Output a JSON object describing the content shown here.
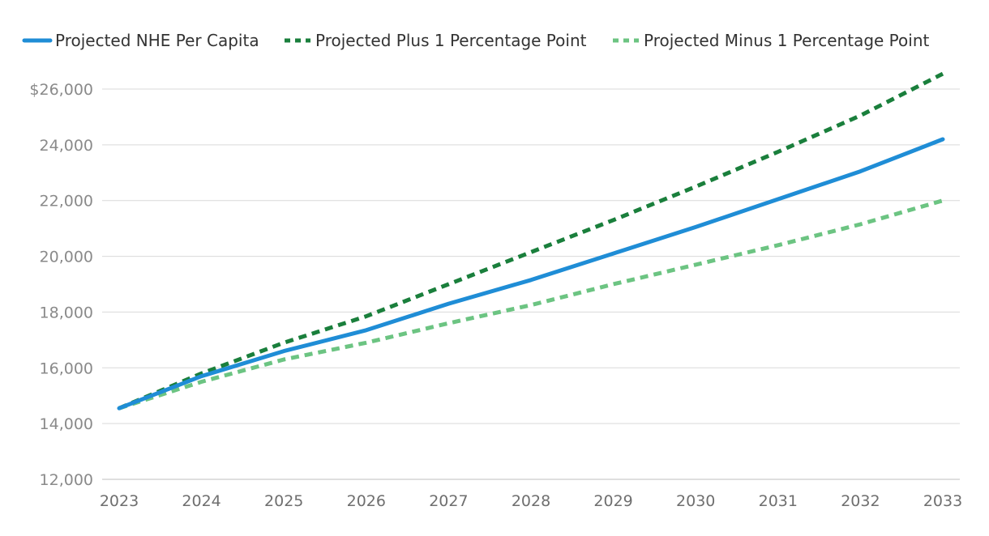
{
  "chart_data": {
    "type": "line",
    "title": "",
    "xlabel": "",
    "ylabel": "",
    "x": [
      "2023",
      "2024",
      "2025",
      "2026",
      "2027",
      "2028",
      "2029",
      "2030",
      "2031",
      "2032",
      "2033"
    ],
    "ylim": [
      12000,
      26000
    ],
    "yticks": [
      12000,
      14000,
      16000,
      18000,
      20000,
      22000,
      24000,
      26000
    ],
    "ytick_labels": [
      "12,000",
      "14,000",
      "16,000",
      "18,000",
      "20,000",
      "22,000",
      "24,000",
      "$26,000"
    ],
    "grid": true,
    "legend_position": "top",
    "series": [
      {
        "name": "Projected NHE Per Capita",
        "color": "#1f8dd6",
        "style": "solid",
        "values": [
          14550,
          15700,
          16600,
          17350,
          18300,
          19150,
          20100,
          21050,
          22050,
          23050,
          24200
        ]
      },
      {
        "name": "Projected Plus 1 Percentage Point",
        "color": "#1a7f3c",
        "style": "dashed",
        "values": [
          14550,
          15800,
          16900,
          17850,
          19000,
          20150,
          21300,
          22500,
          23750,
          25050,
          26550
        ]
      },
      {
        "name": "Projected Minus 1 Percentage Point",
        "color": "#6cc482",
        "style": "dashed",
        "values": [
          14550,
          15500,
          16300,
          16900,
          17600,
          18250,
          19000,
          19700,
          20400,
          21150,
          22000
        ]
      }
    ]
  }
}
